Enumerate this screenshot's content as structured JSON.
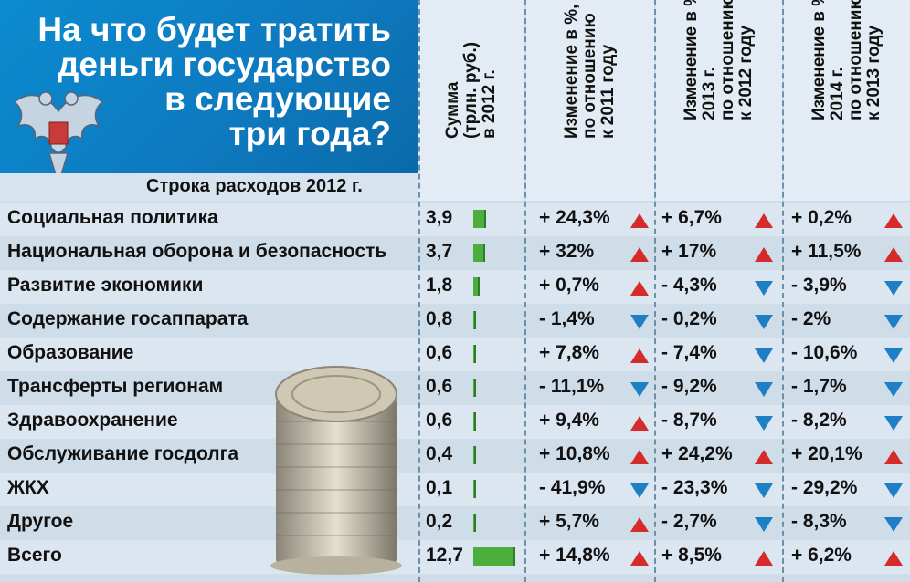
{
  "title": [
    "На что будет тратить",
    "деньги государство",
    "в следующие",
    "три года?"
  ],
  "row_header_label": "Строка расходов 2012 г.",
  "columns": [
    {
      "lines": [
        "Сумма",
        "(трлн. руб.)",
        "в 2012 г."
      ]
    },
    {
      "lines": [
        "Изменение в %,",
        "по отношению",
        "к 2011 году"
      ]
    },
    {
      "lines": [
        "Изменение в %,",
        "2013 г.",
        "по отношению",
        "к 2012 году"
      ]
    },
    {
      "lines": [
        "Изменение в %,",
        "2014 г.",
        "по отношению",
        "к 2013 году"
      ]
    }
  ],
  "colors": {
    "bar": "#4cae3c",
    "up": "#d52b2b",
    "down": "#1f7fc4",
    "banner": "#0b8bd0"
  },
  "chart_data": {
    "type": "table",
    "rows": [
      {
        "name": "Социальная политика",
        "sum": "3,9",
        "value": 3.9,
        "c2012": "+ 24,3%",
        "d2012": "up",
        "c2013": "+ 6,7%",
        "d2013": "up",
        "c2014": "+ 0,2%",
        "d2014": "up"
      },
      {
        "name": "Национальная оборона и безопасность",
        "sum": "3,7",
        "value": 3.7,
        "c2012": "+ 32%",
        "d2012": "up",
        "c2013": "+ 17%",
        "d2013": "up",
        "c2014": "+ 11,5%",
        "d2014": "up"
      },
      {
        "name": "Развитие экономики",
        "sum": "1,8",
        "value": 1.8,
        "c2012": "+ 0,7%",
        "d2012": "up",
        "c2013": "- 4,3%",
        "d2013": "down",
        "c2014": "- 3,9%",
        "d2014": "down"
      },
      {
        "name": "Содержание госаппарата",
        "sum": "0,8",
        "value": 0.8,
        "c2012": "- 1,4%",
        "d2012": "down",
        "c2013": "- 0,2%",
        "d2013": "down",
        "c2014": "- 2%",
        "d2014": "down"
      },
      {
        "name": "Образование",
        "sum": "0,6",
        "value": 0.6,
        "c2012": "+ 7,8%",
        "d2012": "up",
        "c2013": "- 7,4%",
        "d2013": "down",
        "c2014": "- 10,6%",
        "d2014": "down"
      },
      {
        "name": "Трансферты регионам",
        "sum": "0,6",
        "value": 0.6,
        "c2012": "- 11,1%",
        "d2012": "down",
        "c2013": "- 9,2%",
        "d2013": "down",
        "c2014": "- 1,7%",
        "d2014": "down"
      },
      {
        "name": "Здравоохранение",
        "sum": "0,6",
        "value": 0.6,
        "c2012": "+ 9,4%",
        "d2012": "up",
        "c2013": "- 8,7%",
        "d2013": "down",
        "c2014": "- 8,2%",
        "d2014": "down"
      },
      {
        "name": "Обслуживание госдолга",
        "sum": "0,4",
        "value": 0.4,
        "c2012": "+ 10,8%",
        "d2012": "up",
        "c2013": "+ 24,2%",
        "d2013": "up",
        "c2014": "+ 20,1%",
        "d2014": "up"
      },
      {
        "name": "ЖКХ",
        "sum": "0,1",
        "value": 0.1,
        "c2012": "- 41,9%",
        "d2012": "down",
        "c2013": "- 23,3%",
        "d2013": "down",
        "c2014": "- 29,2%",
        "d2014": "down"
      },
      {
        "name": "Другое",
        "sum": "0,2",
        "value": 0.2,
        "c2012": "+ 5,7%",
        "d2012": "up",
        "c2013": "- 2,7%",
        "d2013": "down",
        "c2014": "- 8,3%",
        "d2014": "down"
      },
      {
        "name": "Всего",
        "sum": "12,7",
        "value": 12.7,
        "c2012": "+ 14,8%",
        "d2012": "up",
        "c2013": "+ 8,5%",
        "d2013": "up",
        "c2014": "+ 6,2%",
        "d2014": "up"
      }
    ]
  }
}
